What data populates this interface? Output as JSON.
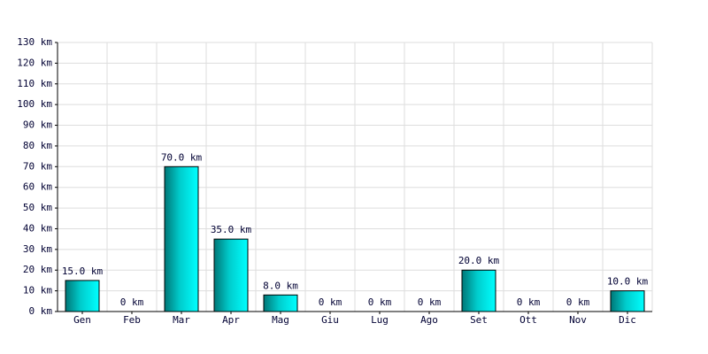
{
  "chart_data": {
    "type": "bar",
    "categories": [
      "Gen",
      "Feb",
      "Mar",
      "Apr",
      "Mag",
      "Giu",
      "Lug",
      "Ago",
      "Set",
      "Ott",
      "Nov",
      "Dic"
    ],
    "values": [
      15,
      0,
      70,
      35,
      8,
      0,
      0,
      0,
      20,
      0,
      0,
      10
    ],
    "value_labels": [
      "15.0 km",
      "0 km",
      "70.0 km",
      "35.0 km",
      "8.0 km",
      "0 km",
      "0 km",
      "0 km",
      "20.0 km",
      "0 km",
      "0 km",
      "10.0 km"
    ],
    "color": "#00cccc",
    "ylim": [
      0,
      130
    ],
    "yticks": [
      {
        "value": 0,
        "label": "0 km"
      },
      {
        "value": 10,
        "label": "10 km"
      },
      {
        "value": 20,
        "label": "20 km"
      },
      {
        "value": 30,
        "label": "30 km"
      },
      {
        "value": 40,
        "label": "40 km"
      },
      {
        "value": 50,
        "label": "50 km"
      },
      {
        "value": 60,
        "label": "60 km"
      },
      {
        "value": 70,
        "label": "70 km"
      },
      {
        "value": 80,
        "label": "80 km"
      },
      {
        "value": 90,
        "label": "90 km"
      },
      {
        "value": 100,
        "label": "100 km"
      },
      {
        "value": 110,
        "label": "110 km"
      },
      {
        "value": 120,
        "label": "120 km"
      },
      {
        "value": 130,
        "label": "130 km"
      }
    ],
    "grid": true
  }
}
